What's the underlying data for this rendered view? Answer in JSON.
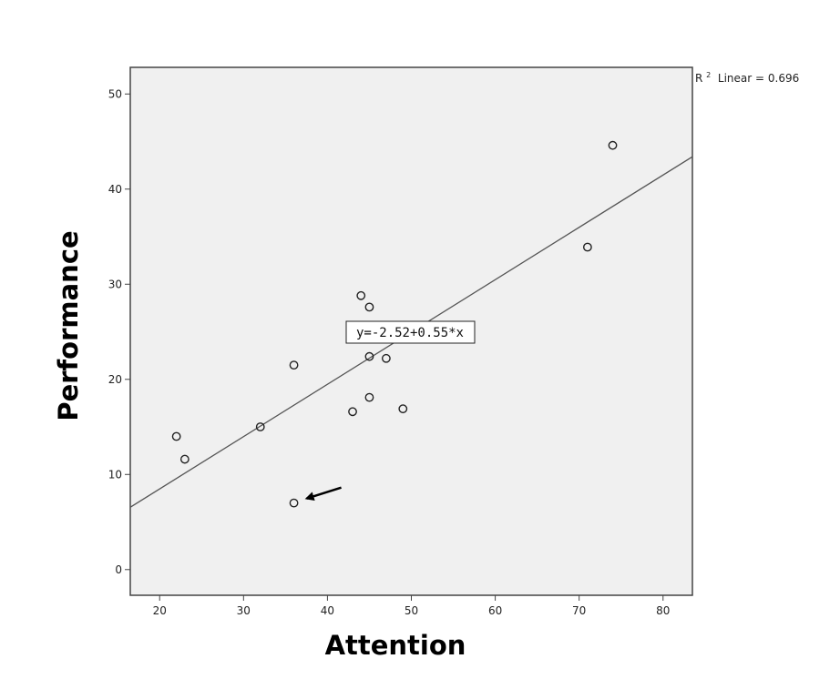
{
  "chart_data": {
    "type": "scatter",
    "title": "",
    "xlabel": "Attention",
    "ylabel": "Performance",
    "xlim": [
      16.5,
      83.5
    ],
    "ylim": [
      -2.7,
      52.8
    ],
    "x_ticks": [
      20,
      30,
      40,
      50,
      60,
      70,
      80
    ],
    "y_ticks": [
      0,
      10,
      20,
      30,
      40,
      50
    ],
    "grid": false,
    "colors": {
      "plot_background": "#f0f0f0",
      "frame": "#444444",
      "marker_stroke": "#222222",
      "fit_line": "#555555"
    },
    "series": [
      {
        "points": [
          {
            "x": 22,
            "y": 14.0
          },
          {
            "x": 23,
            "y": 11.6
          },
          {
            "x": 32,
            "y": 15.0
          },
          {
            "x": 36,
            "y": 21.5
          },
          {
            "x": 36,
            "y": 7.0
          },
          {
            "x": 43,
            "y": 16.6
          },
          {
            "x": 44,
            "y": 28.8
          },
          {
            "x": 45,
            "y": 27.6
          },
          {
            "x": 45,
            "y": 22.4
          },
          {
            "x": 45,
            "y": 18.1
          },
          {
            "x": 47,
            "y": 22.2
          },
          {
            "x": 49,
            "y": 16.9
          },
          {
            "x": 71,
            "y": 33.9
          },
          {
            "x": 74,
            "y": 44.6
          }
        ]
      }
    ],
    "fit_line": {
      "intercept": -2.52,
      "slope": 0.55,
      "equation_label": "y=-2.52+0.55*x",
      "r2_prefix": "R",
      "r2_superscript": "2",
      "r2_label": " Linear = 0.696"
    },
    "annotations": [
      {
        "type": "arrow",
        "points_to": {
          "x": 36,
          "y": 7.0
        }
      }
    ]
  }
}
